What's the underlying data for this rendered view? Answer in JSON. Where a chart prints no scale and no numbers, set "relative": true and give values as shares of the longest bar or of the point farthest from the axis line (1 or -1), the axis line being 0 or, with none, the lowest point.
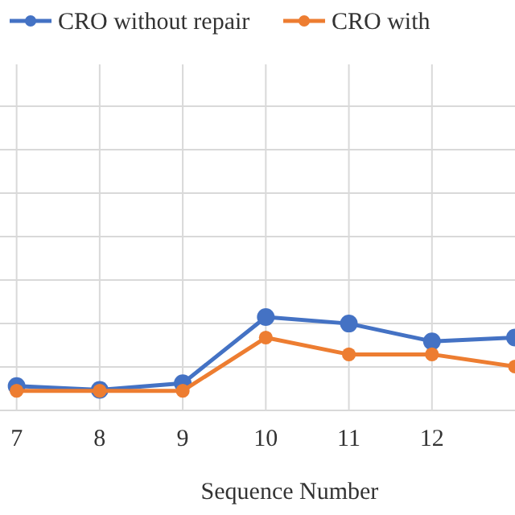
{
  "chart_data": {
    "type": "line",
    "xlabel": "Sequence Number",
    "x": [
      7,
      8,
      9,
      10,
      11,
      12,
      13
    ],
    "xlim": [
      6.8,
      13
    ],
    "xticks": [
      7,
      8,
      9,
      10,
      11,
      12
    ],
    "relative": true,
    "grid": true,
    "legend": "top",
    "marker": "circle",
    "line_style": "solid",
    "series": [
      {
        "name": "CRO without repair",
        "color": "#4472c4",
        "values": [
          0.26,
          0.22,
          0.29,
          1,
          0.93,
          0.74,
          0.78
        ]
      },
      {
        "name": "CRO with",
        "color": "#ed7d31",
        "values": [
          0.21,
          0.21,
          0.21,
          0.78,
          0.6,
          0.6,
          0.47
        ]
      }
    ]
  }
}
